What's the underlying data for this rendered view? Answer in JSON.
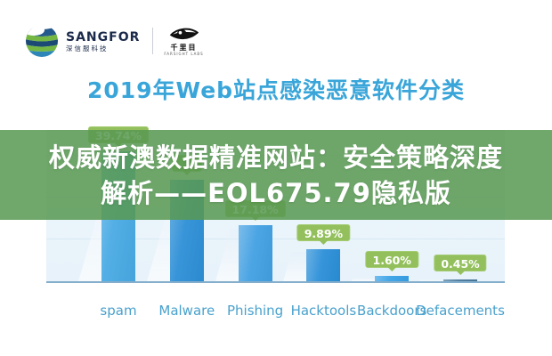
{
  "header": {
    "sangfor_logo": {
      "name": "SANGFOR",
      "subtitle": "深信服科技"
    },
    "farsight_logo": {
      "name": "千里目",
      "subtitle": "FARSIGHT LABS"
    }
  },
  "title": "2019年Web站点感染恶意软件分类",
  "overlay_banner": {
    "line1": "权威新澳数据精准网站：安全策略深度",
    "line2": "解析——EOL675.79隐私版",
    "bg_color": "#589952",
    "text_color": "#ffffff"
  },
  "chart_data": {
    "type": "bar",
    "title": "2019年Web站点感染恶意软件分类",
    "categories": [
      "spam",
      "Malware",
      "Phishing",
      "Hacktools",
      "Backdoors",
      "Defacements"
    ],
    "values": [
      39.74,
      31.1,
      17.18,
      9.89,
      1.6,
      0.45
    ],
    "badge_labels": [
      "39.74%",
      "",
      "17.18%",
      "9.89%",
      "1.60%",
      "0.45%"
    ],
    "bar_colors": [
      "#49aae4",
      "#2d8fd6",
      "#42a0e2",
      "#2b8fd8",
      "#38a1e6",
      "#48789b"
    ],
    "badge_color": "#93c05d",
    "xlabel": "",
    "ylabel": "",
    "ylim": [
      0,
      45
    ],
    "grid": true,
    "legend": false,
    "axis_color": "#84aecb",
    "plot_bg_color": "#e9f3fa",
    "label_color": "#49a1cd"
  }
}
